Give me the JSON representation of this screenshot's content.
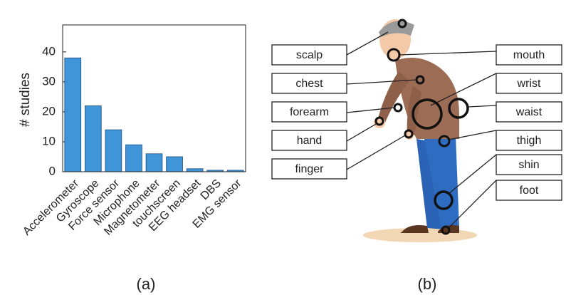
{
  "chart_data": {
    "type": "bar",
    "y_label": "# studies",
    "categories": [
      "Accelerometer",
      "Gyroscope",
      "Force sensor",
      "Microphone",
      "Magnetometer",
      "touchscreen",
      "EEG headset",
      "DBS",
      "EMG sensor"
    ],
    "values": [
      38,
      22,
      14,
      9,
      6,
      5,
      1,
      0.5,
      0.5
    ],
    "color": "#3f95d8",
    "ylim": [
      0,
      49
    ],
    "yticks": [
      0,
      10,
      20,
      30,
      40
    ]
  },
  "panel_labels": [
    "(a)",
    "(b)"
  ],
  "diagram": {
    "left_labels": [
      "scalp",
      "chest",
      "forearm",
      "hand",
      "finger"
    ],
    "right_labels": [
      "mouth",
      "wrist",
      "waist",
      "thigh",
      "shin",
      "foot"
    ]
  }
}
